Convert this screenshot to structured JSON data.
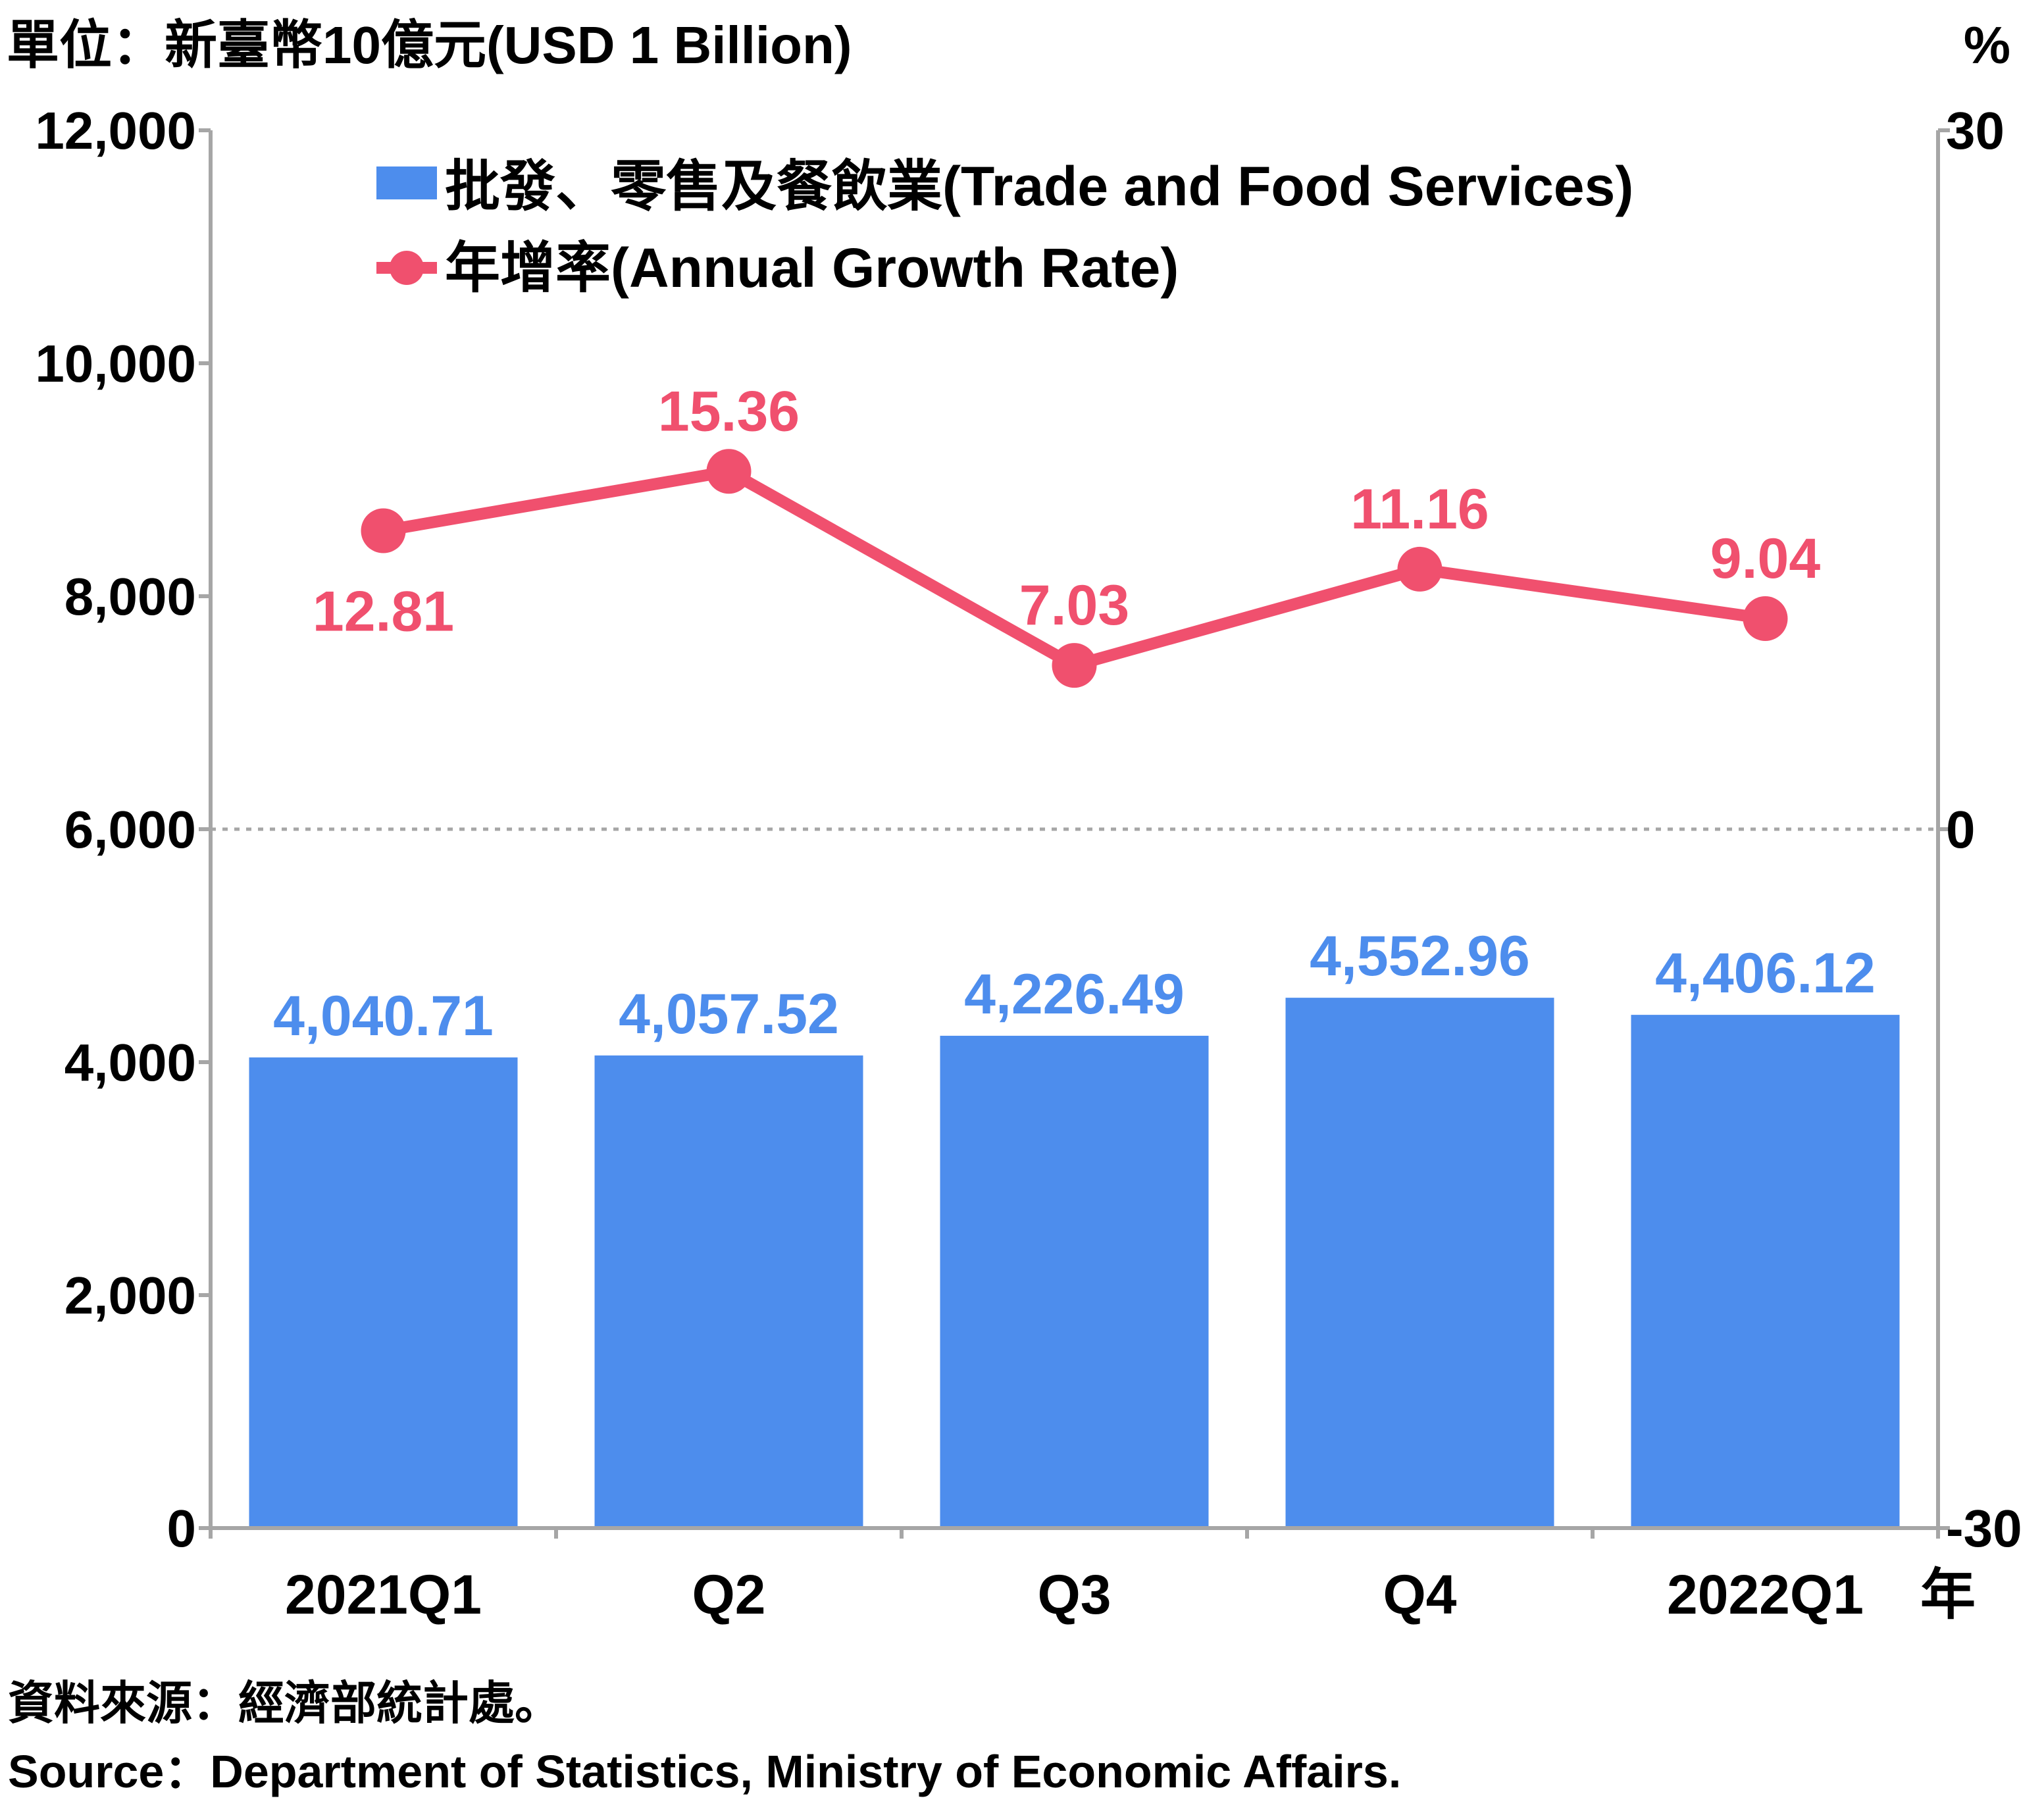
{
  "unit_left": "單位：新臺幣10億元(USD 1 Billion)",
  "unit_right": "%",
  "year_suffix": "年",
  "source_zh": "資料來源：經濟部統計處。",
  "source_en": "Source：Department of Statistics, Ministry of Economic Affairs.",
  "colors": {
    "bar": "#4d8ded",
    "line": "#f0506e",
    "axis": "#a6a6a6"
  },
  "chart_data": {
    "type": "bar",
    "categories": [
      "2021Q1",
      "Q2",
      "Q3",
      "Q4",
      "2022Q1"
    ],
    "series": [
      {
        "name": "批發、零售及餐飲業(Trade and Food Services)",
        "type": "bar",
        "axis": "left",
        "values": [
          4040.71,
          4057.52,
          4226.49,
          4552.96,
          4406.12
        ],
        "labels": [
          "4,040.71",
          "4,057.52",
          "4,226.49",
          "4,552.96",
          "4,406.12"
        ]
      },
      {
        "name": "年增率(Annual Growth Rate)",
        "type": "line",
        "axis": "right",
        "values": [
          12.81,
          15.36,
          7.03,
          11.16,
          9.04
        ],
        "labels": [
          "12.81",
          "15.36",
          "7.03",
          "11.16",
          "9.04"
        ]
      }
    ],
    "ylim_left": [
      0,
      12000
    ],
    "yticks_left": [
      "0",
      "2,000",
      "4,000",
      "6,000",
      "8,000",
      "10,000",
      "12,000"
    ],
    "ylim_right": [
      -30,
      30
    ],
    "yticks_right": [
      "-30",
      "0",
      "30"
    ],
    "zero_line_right": true,
    "grid": false,
    "legend_position": "top-center"
  }
}
